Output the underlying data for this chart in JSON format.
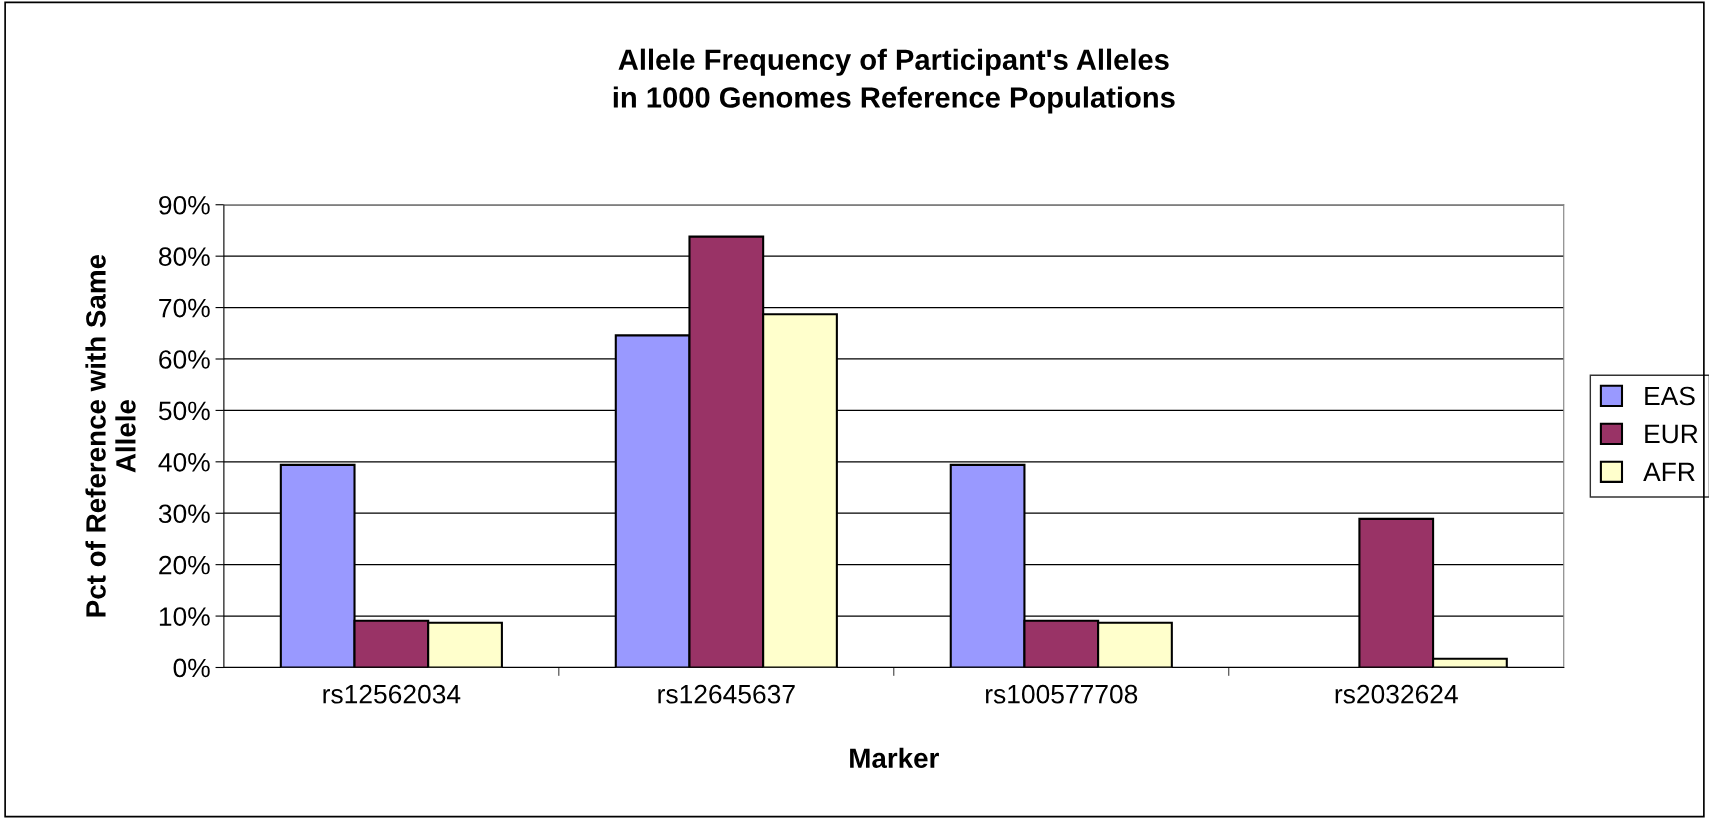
{
  "chart_data": {
    "type": "bar",
    "title": "Allele Frequency of Participant's Alleles\nin 1000 Genomes Reference Populations",
    "xlabel": "Marker",
    "ylabel": "Pct of Reference with Same\nAllele",
    "categories": [
      "rs12562034",
      "rs12645637",
      "rs100577708",
      "rs2032624"
    ],
    "series": [
      {
        "name": "EAS",
        "color": "#9999ff",
        "values": [
          39.4,
          64.6,
          39.4,
          null
        ]
      },
      {
        "name": "EUR",
        "color": "#993366",
        "values": [
          9.1,
          83.8,
          9.1,
          28.9
        ]
      },
      {
        "name": "AFR",
        "color": "#ffffcc",
        "values": [
          8.7,
          68.7,
          8.7,
          1.7
        ]
      }
    ],
    "ylim": [
      0,
      90
    ],
    "yticks": [
      {
        "value": 0,
        "label": "0%"
      },
      {
        "value": 10,
        "label": "10%"
      },
      {
        "value": 20,
        "label": "20%"
      },
      {
        "value": 30,
        "label": "30%"
      },
      {
        "value": 40,
        "label": "40%"
      },
      {
        "value": 50,
        "label": "50%"
      },
      {
        "value": 60,
        "label": "60%"
      },
      {
        "value": 70,
        "label": "70%"
      },
      {
        "value": 80,
        "label": "80%"
      },
      {
        "value": 90,
        "label": "90%"
      }
    ],
    "grid": "y",
    "legend": "right"
  }
}
